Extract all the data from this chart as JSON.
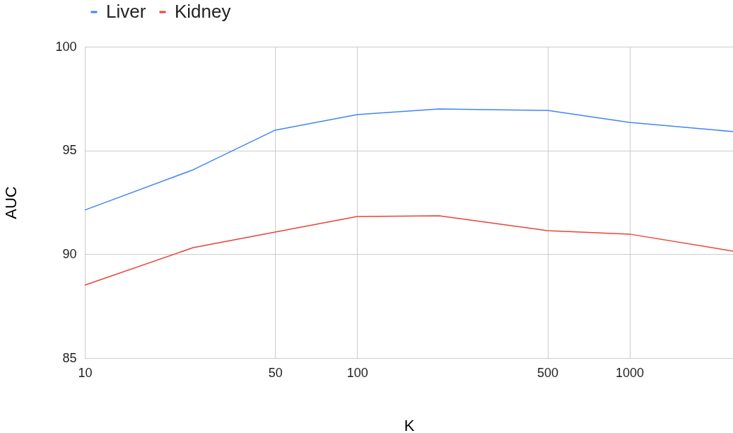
{
  "chart_data": {
    "type": "line",
    "xlabel": "K",
    "ylabel": "AUC",
    "log": "x",
    "x": [
      10,
      25,
      50,
      100,
      200,
      500,
      1000,
      2400
    ],
    "series": [
      {
        "name": "Liver",
        "color": "#4285f4",
        "values": [
          92.13,
          94.07,
          95.98,
          96.73,
          97.0,
          96.93,
          96.35,
          95.91
        ]
      },
      {
        "name": "Kidney",
        "color": "#ea4335",
        "values": [
          88.51,
          90.32,
          91.07,
          91.82,
          91.85,
          91.14,
          90.97,
          90.15
        ]
      }
    ],
    "xlim": [
      10,
      2400
    ],
    "xticks": [
      10,
      50,
      100,
      500,
      1000
    ],
    "ylim": [
      85,
      100
    ],
    "yticks": [
      85,
      90,
      95,
      100
    ],
    "grid": true,
    "legend": "top",
    "marker": "none",
    "line_style": "solid"
  }
}
